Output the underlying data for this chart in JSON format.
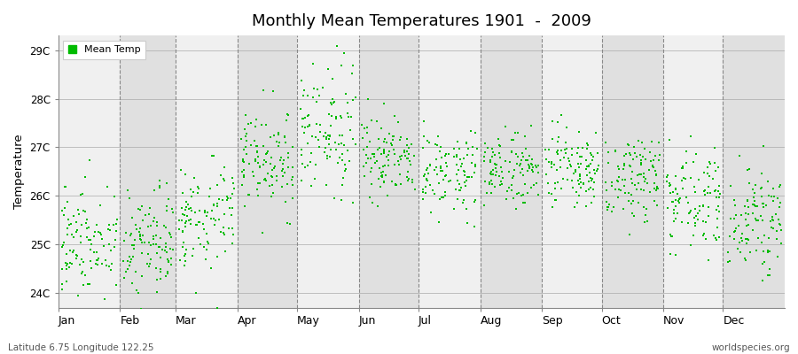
{
  "title": "Monthly Mean Temperatures 1901  -  2009",
  "ylabel": "Temperature",
  "xlabel_labels": [
    "Jan",
    "Feb",
    "Mar",
    "Apr",
    "May",
    "Jun",
    "Jul",
    "Aug",
    "Sep",
    "Oct",
    "Nov",
    "Dec"
  ],
  "ytick_labels": [
    "24C",
    "25C",
    "26C",
    "27C",
    "28C",
    "29C"
  ],
  "ytick_values": [
    24,
    25,
    26,
    27,
    28,
    29
  ],
  "ylim": [
    23.7,
    29.3
  ],
  "dot_color": "#00BB00",
  "dot_size": 2,
  "background_light": "#F0F0F0",
  "background_dark": "#E0E0E0",
  "legend_label": "Mean Temp",
  "footer_left": "Latitude 6.75 Longitude 122.25",
  "footer_right": "worldspecies.org",
  "n_years": 109,
  "seed": 42,
  "monthly_means": [
    25.1,
    25.0,
    25.6,
    26.7,
    27.3,
    26.8,
    26.5,
    26.5,
    26.5,
    26.4,
    26.0,
    25.5
  ],
  "monthly_stds": [
    0.6,
    0.6,
    0.55,
    0.55,
    0.6,
    0.45,
    0.4,
    0.4,
    0.42,
    0.45,
    0.48,
    0.52
  ]
}
